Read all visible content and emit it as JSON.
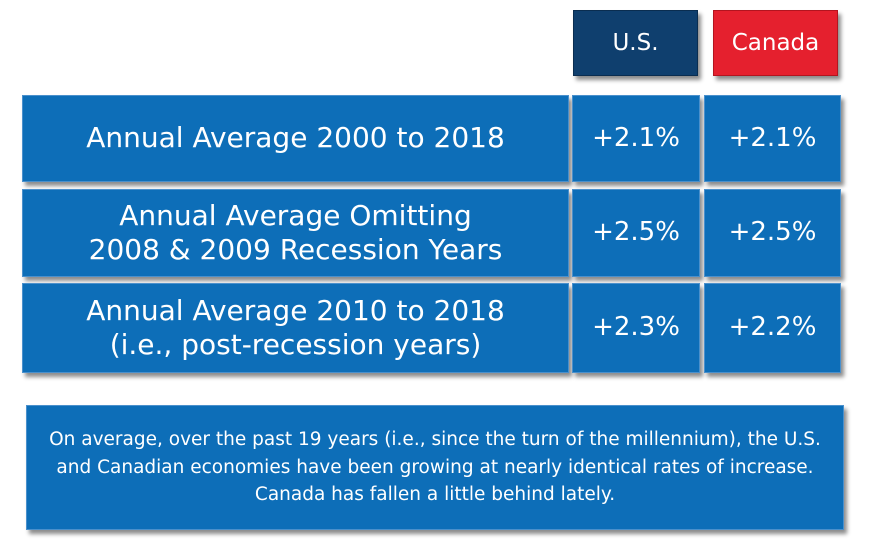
{
  "chart_data": {
    "type": "table",
    "columns": [
      "U.S.",
      "Canada"
    ],
    "colors": {
      "U.S.": "#0f3f6e",
      "Canada": "#e5202e",
      "cell": "#0d6eb8"
    },
    "rows": [
      {
        "label": "Annual Average 2000 to 2018",
        "values": [
          "+2.1%",
          "+2.1%"
        ]
      },
      {
        "label": "Annual Average Omitting\n2008 & 2009 Recession Years",
        "values": [
          "+2.5%",
          "+2.5%"
        ]
      },
      {
        "label": "Annual Average 2010 to 2018\n(i.e., post-recession years)",
        "values": [
          "+2.3%",
          "+2.2%"
        ]
      }
    ]
  },
  "note": "On average, over the past 19 years (i.e., since the turn of the millennium), the U.S. and Canadian economies have been growing at nearly identical rates of increase. Canada has fallen a little behind lately."
}
